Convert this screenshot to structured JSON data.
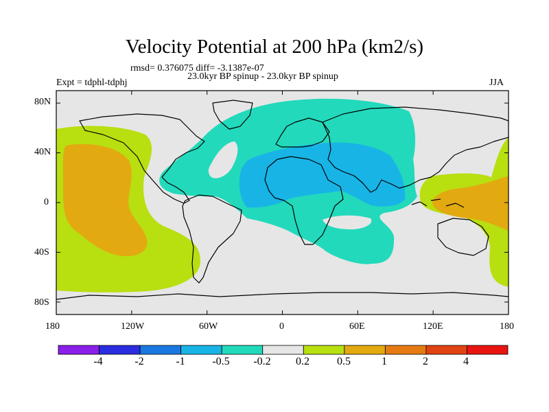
{
  "title": "Velocity Potential at 200 hPa (km2/s)",
  "stats_line": "rmsd= 0.376075 diff= -3.1387e-07",
  "expt_label": "Expt = tdphl-tdphj",
  "comparison_label": "23.0kyr BP spinup - 23.0kyr BP spinup",
  "season_label": "JJA",
  "map": {
    "projection": "cylindrical-equidistant",
    "lon_range": [
      -180,
      180
    ],
    "lat_range": [
      -90,
      90
    ],
    "x_ticks": [
      "180",
      "120W",
      "60W",
      "0",
      "60E",
      "120E",
      "180"
    ],
    "y_ticks": [
      "80N",
      "40N",
      "0",
      "40S",
      "80S"
    ]
  },
  "colorbar": {
    "labels": [
      "-4",
      "-2",
      "-1",
      "-0.5",
      "-0.2",
      "0.2",
      "0.5",
      "1",
      "2",
      "4"
    ],
    "colors": [
      "#8a1fe8",
      "#2b2de0",
      "#1a78e0",
      "#18b4e6",
      "#22d9bb",
      "#e6e6e6",
      "#b8df10",
      "#e2aa10",
      "#e57a12",
      "#e04412",
      "#e81510"
    ]
  }
}
